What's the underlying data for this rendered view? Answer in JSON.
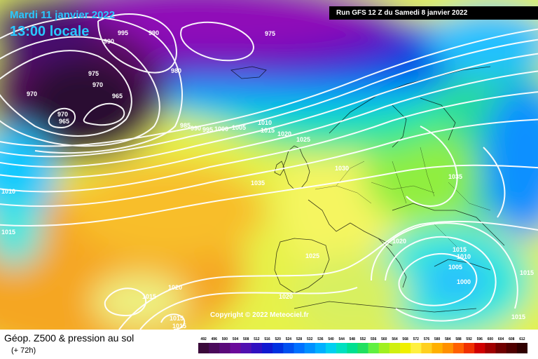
{
  "header": {
    "date": "Mardi 11 janvier 2022",
    "local_time": "13:00 locale",
    "run": "Run GFS 12 Z du Samedi 8 janvier 2022"
  },
  "isobar_labels": [
    "995",
    "990",
    "990",
    "975",
    "980",
    "975",
    "970",
    "970",
    "965",
    "970",
    "965",
    "985",
    "990",
    "995",
    "1000",
    "1005",
    "1010",
    "1015",
    "1020",
    "1025",
    "1030",
    "1035",
    "1035",
    "1010",
    "1015",
    "1020",
    "1025",
    "1020",
    "1015",
    "1010",
    "1005",
    "1000",
    "1015",
    "1020",
    "1015",
    "1015",
    "1015",
    "1015"
  ],
  "copyright": "Copyright © 2022 Meteociel.fr",
  "legend": {
    "title": "Géop. Z500 & pression au sol",
    "forecast": "(+ 72h)",
    "scale_values": [
      "492",
      "496",
      "500",
      "504",
      "508",
      "512",
      "516",
      "520",
      "524",
      "528",
      "532",
      "536",
      "540",
      "544",
      "548",
      "552",
      "556",
      "560",
      "564",
      "568",
      "572",
      "576",
      "580",
      "584",
      "588",
      "592",
      "596",
      "600",
      "604",
      "608",
      "612"
    ],
    "scale_colors": [
      "#3a0a3a",
      "#4a0a5a",
      "#5a0a7a",
      "#6a0a9a",
      "#5010b0",
      "#3010c0",
      "#1018d0",
      "#0030e0",
      "#0050f0",
      "#0070ff",
      "#0090ff",
      "#00b0ff",
      "#00d0f0",
      "#00e0c0",
      "#00e090",
      "#20e060",
      "#60f040",
      "#a0f020",
      "#d0f010",
      "#f0f000",
      "#fff040",
      "#ffd020",
      "#ffb000",
      "#ff9000",
      "#ff6000",
      "#f03000",
      "#d00000",
      "#a00000",
      "#700000",
      "#500000",
      "#300000"
    ]
  }
}
